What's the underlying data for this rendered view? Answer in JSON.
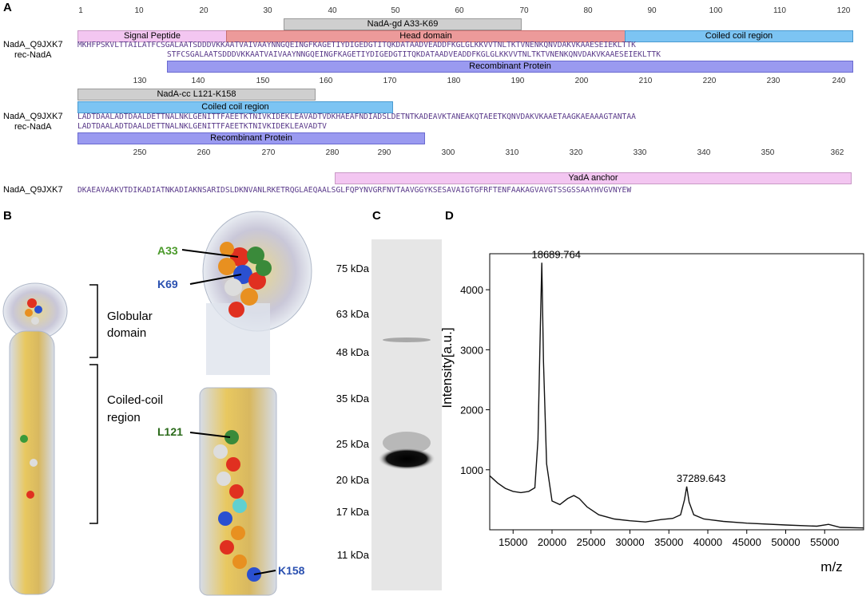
{
  "panels": {
    "a": "A",
    "b": "B",
    "c": "C",
    "d": "D"
  },
  "seq_names": {
    "nada": "NadA_Q9JXK7",
    "rec": "rec-NadA"
  },
  "row1": {
    "ruler": [
      "1",
      "10",
      "20",
      "30",
      "40",
      "50",
      "60",
      "70",
      "80",
      "90",
      "100",
      "110",
      "120"
    ],
    "features": {
      "gd": "NadA-gd A33-K69",
      "signal": "Signal Peptide",
      "head": "Head domain",
      "coil": "Coiled coil region",
      "recomb": "Recombinant Protein"
    },
    "nada_seq": "MKHFPSKVLTTAILATFCSGALAATSDDDVKKAATVAIVAAYNNGQEINGFKAGETIYDIGEDGTITQKDATAADVEADDFKGLGLKKVVTNLTKTVNENKQNVDAKVKAAESEIEKLTTK",
    "rec_seq": "STFCSGALAATSDDDVKKAATVAIVAAYNNGQEINGFKAGETIYDIGEDGTITQKDATAADVEADDFKGLGLKKVVTNLTKTVNENKQNVDAKVKAAESEIEKLTTK"
  },
  "row2": {
    "ruler": [
      "130",
      "140",
      "150",
      "160",
      "170",
      "180",
      "190",
      "200",
      "210",
      "220",
      "230",
      "240"
    ],
    "features": {
      "cc": "NadA-cc L121-K158",
      "coil": "Coiled coil region",
      "recomb": "Recombinant Protein"
    },
    "nada_seq": "LADTDAALADTDAALDETTNALNKLGENITTFAEETKTNIVKIDEKLEAVADTVDKHAEAFNDIADSLDETNTKADEAVKTANEAKQTAEETKQNVDAKVKAAETAAGKAEAAAGTANTAA",
    "rec_seq": "LADTDAALADTDAALDETTNALNKLGENITTFAEETKTNIVKIDEKLEAVADTV"
  },
  "row3": {
    "ruler": [
      "250",
      "260",
      "270",
      "280",
      "290",
      "300",
      "310",
      "320",
      "330",
      "340",
      "350",
      "362"
    ],
    "features": {
      "yada": "YadA anchor"
    },
    "nada_seq": "DKAEAVAAKVTDIKADIATNKADIAKNSARIDSLDKNVANLRKETRQGLAEQAALSGLFQPYNVGRFNVTAAVGGYKSESAVAIGTGFRFTENFAAKAGVAVGTSSGSSAAYHVGVNYEW"
  },
  "panel_b": {
    "a33": "A33",
    "k69": "K69",
    "l121": "L121",
    "k158": "K158",
    "globular": [
      "Globular",
      "domain"
    ],
    "coiled": [
      "Coiled-coil",
      "region"
    ]
  },
  "panel_c": {
    "markers": [
      "75 kDa",
      "63 kDa",
      "48 kDa",
      "35 kDa",
      "25 kDa",
      "20 kDa",
      "17 kDa",
      "11 kDa"
    ]
  },
  "chart_data": {
    "type": "line",
    "title": "",
    "xlabel": "m/z",
    "ylabel": "Intensity[a.u.]",
    "xlim": [
      12000,
      60000
    ],
    "ylim": [
      0,
      4600
    ],
    "x_ticks": [
      15000,
      20000,
      25000,
      30000,
      35000,
      40000,
      45000,
      50000,
      55000
    ],
    "y_ticks": [
      1000,
      2000,
      3000,
      4000
    ],
    "grid": false,
    "series": [
      {
        "x": [
          12000,
          13000,
          14000,
          15000,
          16000,
          17000,
          17800,
          18200,
          18500,
          18690,
          18900,
          19300,
          20000,
          21000,
          22000,
          22800,
          23500,
          24500,
          26000,
          28000,
          30000,
          32000,
          34000,
          35500,
          36500,
          37000,
          37290,
          37600,
          38200,
          39500,
          42000,
          45000,
          50000,
          54000,
          55500,
          57000,
          60000
        ],
        "y": [
          900,
          780,
          690,
          640,
          620,
          640,
          700,
          1500,
          3400,
          4450,
          2800,
          1100,
          480,
          420,
          520,
          570,
          520,
          380,
          250,
          180,
          150,
          130,
          170,
          190,
          250,
          500,
          720,
          460,
          250,
          180,
          140,
          110,
          80,
          60,
          90,
          40,
          30
        ]
      }
    ],
    "annotations": [
      {
        "x": 18689.764,
        "y": 4450,
        "text": "18689.764"
      },
      {
        "x": 37289.643,
        "y": 720,
        "text": "37289.643"
      }
    ]
  }
}
